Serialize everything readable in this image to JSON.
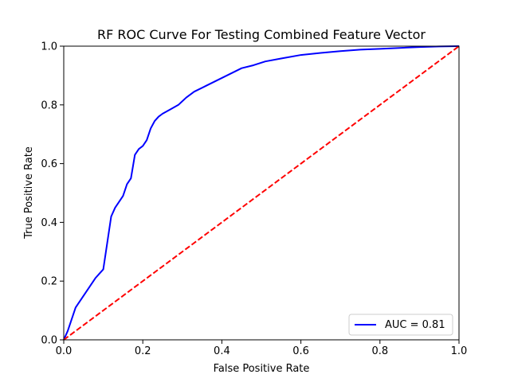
{
  "chart_data": {
    "type": "line",
    "title": "RF ROC Curve For Testing Combined Feature Vector",
    "xlabel": "False Positive Rate",
    "ylabel": "True Positive Rate",
    "xlim": [
      0.0,
      1.0
    ],
    "ylim": [
      0.0,
      1.0
    ],
    "xticks": [
      "0.0",
      "0.2",
      "0.4",
      "0.6",
      "0.8",
      "1.0"
    ],
    "yticks": [
      "0.0",
      "0.2",
      "0.4",
      "0.6",
      "0.8",
      "1.0"
    ],
    "grid": false,
    "legend_position": "lower-right",
    "series": [
      {
        "name": "AUC = 0.81",
        "color": "#0000ff",
        "style": "solid",
        "x": [
          0.0,
          0.01,
          0.02,
          0.03,
          0.04,
          0.05,
          0.06,
          0.07,
          0.08,
          0.09,
          0.1,
          0.11,
          0.12,
          0.13,
          0.14,
          0.15,
          0.16,
          0.17,
          0.18,
          0.19,
          0.2,
          0.21,
          0.22,
          0.23,
          0.24,
          0.25,
          0.27,
          0.29,
          0.31,
          0.33,
          0.36,
          0.39,
          0.42,
          0.45,
          0.48,
          0.51,
          0.55,
          0.6,
          0.65,
          0.7,
          0.75,
          0.8,
          0.85,
          0.9,
          0.95,
          1.0
        ],
        "y": [
          0.0,
          0.03,
          0.07,
          0.11,
          0.13,
          0.15,
          0.17,
          0.19,
          0.21,
          0.225,
          0.24,
          0.33,
          0.42,
          0.45,
          0.47,
          0.49,
          0.53,
          0.55,
          0.63,
          0.65,
          0.66,
          0.68,
          0.72,
          0.745,
          0.76,
          0.77,
          0.785,
          0.8,
          0.825,
          0.845,
          0.865,
          0.885,
          0.905,
          0.925,
          0.935,
          0.948,
          0.958,
          0.97,
          0.977,
          0.983,
          0.988,
          0.991,
          0.994,
          0.997,
          0.999,
          1.0
        ]
      },
      {
        "name": "",
        "color": "#ff0000",
        "style": "dashed",
        "x": [
          0.0,
          1.0
        ],
        "y": [
          0.0,
          1.0
        ]
      }
    ],
    "legend": [
      {
        "label": "AUC = 0.81",
        "color": "#0000ff"
      }
    ]
  }
}
